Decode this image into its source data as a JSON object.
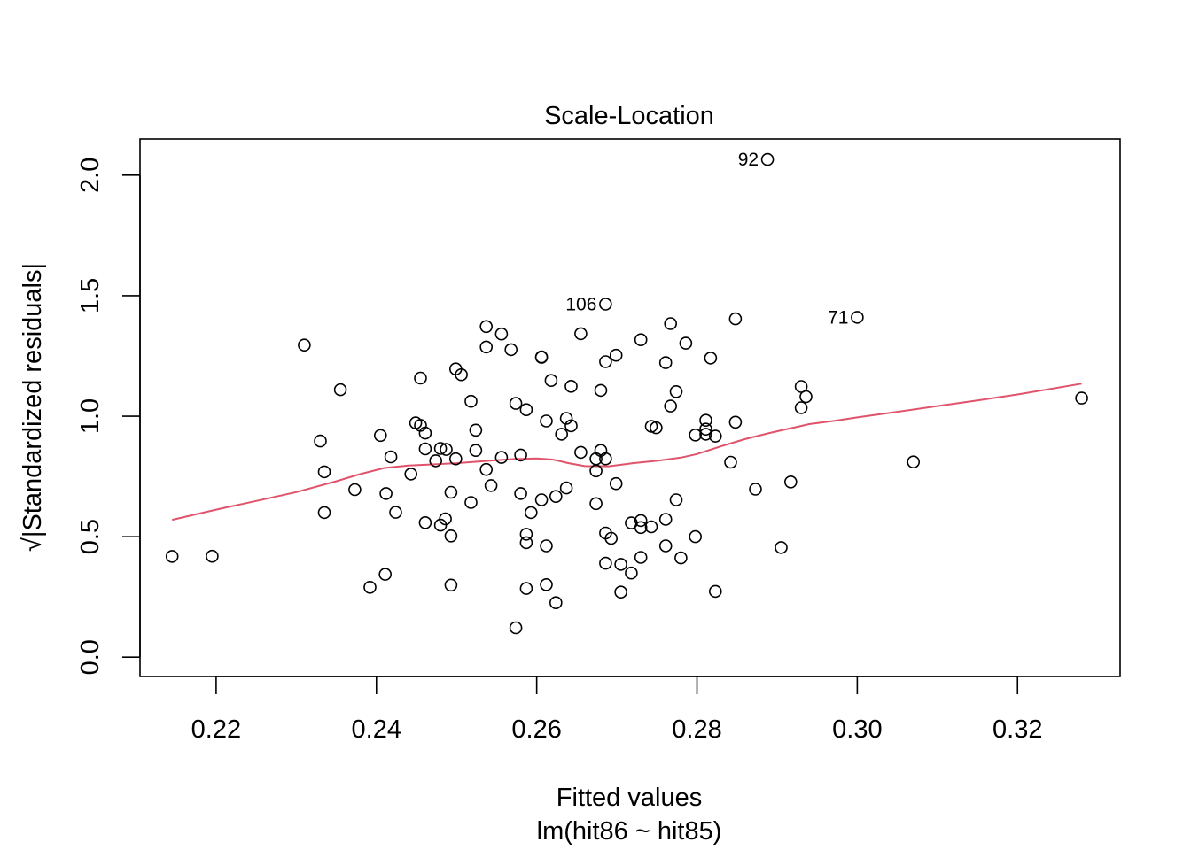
{
  "chart_data": {
    "type": "scatter",
    "title": "Scale-Location",
    "xlabel": "Fitted values",
    "subtitle": "lm(hit86 ~ hit85)",
    "ylabel": "√|Standardized residuals|",
    "xlim": [
      0.2105,
      0.3328
    ],
    "ylim": [
      -0.08,
      2.15
    ],
    "x_ticks": [
      0.22,
      0.24,
      0.26,
      0.28,
      0.3,
      0.32
    ],
    "x_tick_labels": [
      "0.22",
      "0.24",
      "0.26",
      "0.28",
      "0.30",
      "0.32"
    ],
    "y_ticks": [
      0.0,
      0.5,
      1.0,
      1.5,
      2.0
    ],
    "y_tick_labels": [
      "0.0",
      "0.5",
      "1.0",
      "1.5",
      "2.0"
    ],
    "smooth_color": "#DF536B",
    "points": [
      [
        0.2145,
        0.418
      ],
      [
        0.2195,
        0.419
      ],
      [
        0.231,
        1.295
      ],
      [
        0.233,
        0.897
      ],
      [
        0.2335,
        0.6
      ],
      [
        0.2335,
        0.769
      ],
      [
        0.2355,
        1.11
      ],
      [
        0.2373,
        0.695
      ],
      [
        0.2392,
        0.29
      ],
      [
        0.2405,
        0.92
      ],
      [
        0.2411,
        0.344
      ],
      [
        0.2412,
        0.679
      ],
      [
        0.2418,
        0.831
      ],
      [
        0.2424,
        0.601
      ],
      [
        0.2443,
        0.76
      ],
      [
        0.2449,
        0.972
      ],
      [
        0.2455,
        1.158
      ],
      [
        0.2455,
        0.962
      ],
      [
        0.2461,
        0.93
      ],
      [
        0.2461,
        0.864
      ],
      [
        0.2461,
        0.558
      ],
      [
        0.2474,
        0.815
      ],
      [
        0.248,
        0.866
      ],
      [
        0.248,
        0.548
      ],
      [
        0.2486,
        0.574
      ],
      [
        0.2487,
        0.862
      ],
      [
        0.2493,
        0.684
      ],
      [
        0.2493,
        0.503
      ],
      [
        0.2493,
        0.299
      ],
      [
        0.2499,
        1.196
      ],
      [
        0.2499,
        0.823
      ],
      [
        0.2506,
        1.172
      ],
      [
        0.2518,
        1.062
      ],
      [
        0.2518,
        0.642
      ],
      [
        0.2524,
        0.942
      ],
      [
        0.2524,
        0.858
      ],
      [
        0.2537,
        1.372
      ],
      [
        0.2537,
        1.287
      ],
      [
        0.2537,
        0.779
      ],
      [
        0.2543,
        0.712
      ],
      [
        0.2556,
        1.341
      ],
      [
        0.2556,
        0.829
      ],
      [
        0.2568,
        1.276
      ],
      [
        0.2574,
        1.053
      ],
      [
        0.2574,
        0.122
      ],
      [
        0.258,
        0.839
      ],
      [
        0.258,
        0.679
      ],
      [
        0.2587,
        1.027
      ],
      [
        0.2587,
        0.51
      ],
      [
        0.2587,
        0.475
      ],
      [
        0.2587,
        0.285
      ],
      [
        0.2593,
        0.6
      ],
      [
        0.2606,
        1.246
      ],
      [
        0.2606,
        1.244
      ],
      [
        0.2606,
        0.653
      ],
      [
        0.2612,
        0.98
      ],
      [
        0.2612,
        0.462
      ],
      [
        0.2612,
        0.301
      ],
      [
        0.2618,
        1.148
      ],
      [
        0.2624,
        0.667
      ],
      [
        0.2624,
        0.226
      ],
      [
        0.2631,
        0.925
      ],
      [
        0.2637,
        0.991
      ],
      [
        0.2637,
        0.702
      ],
      [
        0.2643,
        1.124
      ],
      [
        0.2643,
        0.96
      ],
      [
        0.2655,
        1.342
      ],
      [
        0.2655,
        0.85
      ],
      [
        0.2674,
        0.823
      ],
      [
        0.2674,
        0.773
      ],
      [
        0.2674,
        0.637
      ],
      [
        0.268,
        1.107
      ],
      [
        0.268,
        0.858
      ],
      [
        0.2686,
        1.465
      ],
      [
        0.2686,
        1.226
      ],
      [
        0.2686,
        0.823
      ],
      [
        0.2686,
        0.515
      ],
      [
        0.2686,
        0.39
      ],
      [
        0.2693,
        0.493
      ],
      [
        0.2699,
        1.253
      ],
      [
        0.2699,
        0.72
      ],
      [
        0.2705,
        0.385
      ],
      [
        0.2705,
        0.27
      ],
      [
        0.2718,
        0.557
      ],
      [
        0.2718,
        0.349
      ],
      [
        0.273,
        1.317
      ],
      [
        0.273,
        0.567
      ],
      [
        0.273,
        0.538
      ],
      [
        0.273,
        0.414
      ],
      [
        0.2743,
        0.958
      ],
      [
        0.2743,
        0.541
      ],
      [
        0.2749,
        0.952
      ],
      [
        0.2761,
        1.222
      ],
      [
        0.2761,
        0.572
      ],
      [
        0.2761,
        0.462
      ],
      [
        0.2767,
        1.384
      ],
      [
        0.2767,
        1.042
      ],
      [
        0.2774,
        1.102
      ],
      [
        0.2774,
        0.653
      ],
      [
        0.278,
        0.412
      ],
      [
        0.2786,
        1.303
      ],
      [
        0.2798,
        0.922
      ],
      [
        0.2798,
        0.5
      ],
      [
        0.2811,
        0.983
      ],
      [
        0.2811,
        0.946
      ],
      [
        0.2811,
        0.925
      ],
      [
        0.2817,
        1.241
      ],
      [
        0.2823,
        0.917
      ],
      [
        0.2823,
        0.273
      ],
      [
        0.2842,
        0.809
      ],
      [
        0.2848,
        1.404
      ],
      [
        0.2848,
        0.975
      ],
      [
        0.2873,
        0.697
      ],
      [
        0.2888,
        2.065
      ],
      [
        0.2905,
        0.455
      ],
      [
        0.2917,
        0.727
      ],
      [
        0.293,
        1.123
      ],
      [
        0.293,
        1.035
      ],
      [
        0.2936,
        1.081
      ],
      [
        0.3,
        1.41
      ],
      [
        0.307,
        0.81
      ],
      [
        0.328,
        1.075
      ]
    ],
    "point_labels": [
      {
        "text": "92",
        "x": 0.2888,
        "y": 2.065
      },
      {
        "text": "106",
        "x": 0.2686,
        "y": 1.465
      },
      {
        "text": "71",
        "x": 0.3,
        "y": 1.41
      }
    ],
    "smooth_line": [
      [
        0.2145,
        0.57
      ],
      [
        0.22,
        0.612
      ],
      [
        0.225,
        0.648
      ],
      [
        0.23,
        0.685
      ],
      [
        0.235,
        0.73
      ],
      [
        0.238,
        0.76
      ],
      [
        0.241,
        0.785
      ],
      [
        0.244,
        0.795
      ],
      [
        0.247,
        0.8
      ],
      [
        0.25,
        0.805
      ],
      [
        0.254,
        0.815
      ],
      [
        0.257,
        0.822
      ],
      [
        0.26,
        0.825
      ],
      [
        0.262,
        0.82
      ],
      [
        0.264,
        0.805
      ],
      [
        0.266,
        0.793
      ],
      [
        0.269,
        0.792
      ],
      [
        0.272,
        0.805
      ],
      [
        0.275,
        0.815
      ],
      [
        0.278,
        0.828
      ],
      [
        0.28,
        0.843
      ],
      [
        0.283,
        0.875
      ],
      [
        0.286,
        0.905
      ],
      [
        0.289,
        0.93
      ],
      [
        0.292,
        0.952
      ],
      [
        0.294,
        0.967
      ],
      [
        0.297,
        0.98
      ],
      [
        0.3,
        0.995
      ],
      [
        0.305,
        1.018
      ],
      [
        0.31,
        1.042
      ],
      [
        0.315,
        1.065
      ],
      [
        0.32,
        1.09
      ],
      [
        0.328,
        1.135
      ]
    ]
  }
}
